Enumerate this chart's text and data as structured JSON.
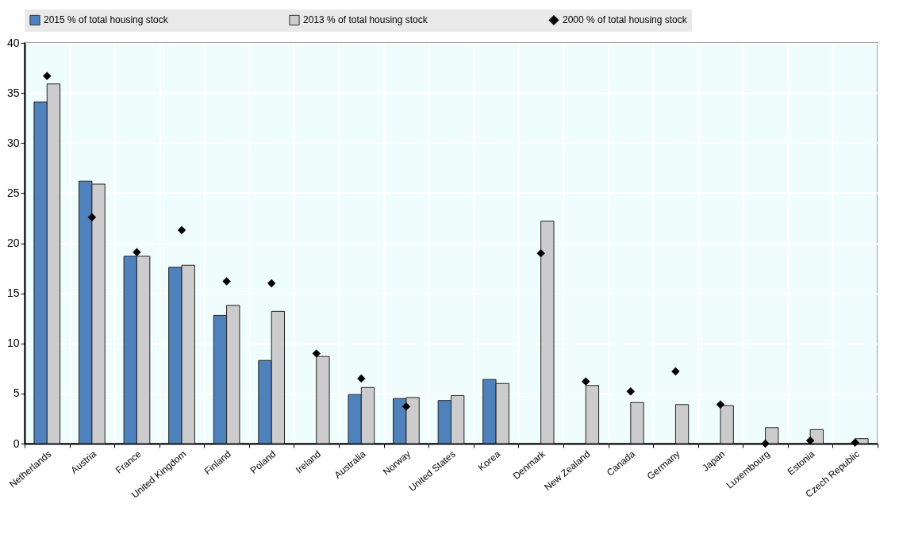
{
  "chart_data": {
    "type": "bar",
    "categories": [
      "Netherlands",
      "Austria",
      "France",
      "United Kingdom",
      "Finland",
      "Poland",
      "Ireland",
      "Australia",
      "Norway",
      "United States",
      "Korea",
      "Denmark",
      "New Zealand",
      "Canada",
      "Germany",
      "Japan",
      "Luxembourg",
      "Estonia",
      "Czech Republic"
    ],
    "series": [
      {
        "name": "2015 % of total housing stock",
        "color": "#4f81bd",
        "values": [
          34.1,
          26.2,
          18.7,
          17.6,
          12.8,
          8.3,
          null,
          4.9,
          4.5,
          4.3,
          6.4,
          null,
          null,
          null,
          null,
          null,
          null,
          null,
          null
        ]
      },
      {
        "name": "2013 % of total housing stock",
        "color": "#cccccc",
        "values": [
          35.9,
          25.9,
          18.7,
          17.8,
          13.8,
          13.2,
          8.7,
          5.6,
          4.6,
          4.8,
          6.0,
          22.2,
          5.8,
          4.1,
          3.9,
          3.8,
          1.6,
          1.4,
          0.5
        ]
      },
      {
        "name": "2000 % of total housing stock",
        "type": "scatter",
        "color": "#000000",
        "values": [
          36.7,
          22.6,
          19.1,
          21.3,
          16.2,
          16.0,
          9.0,
          6.5,
          3.7,
          null,
          null,
          19.0,
          6.2,
          5.2,
          7.2,
          3.9,
          0.0,
          0.3,
          0.1
        ]
      }
    ],
    "ylim": [
      0,
      40
    ],
    "yticks": [
      0,
      5,
      10,
      15,
      20,
      25,
      30,
      35,
      40
    ],
    "grid": true,
    "legend": "top",
    "marker": "diamond"
  }
}
